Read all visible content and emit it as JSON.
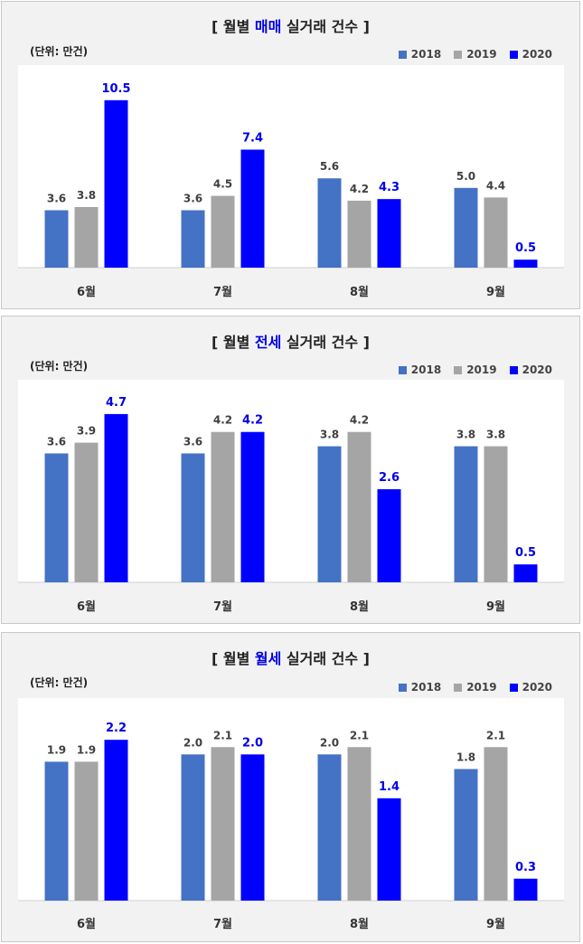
{
  "colors": {
    "s2018": "#4472c4",
    "s2019": "#a5a5a5",
    "s2020": "#0000ff",
    "label2020": "#0000e6"
  },
  "chart_data": [
    {
      "type": "bar",
      "title_prefix": "[ 월별 ",
      "title_highlight": "매매",
      "title_suffix": " 실거래 건수 ]",
      "unit": "(단위: 만건)",
      "categories": [
        "6월",
        "7월",
        "8월",
        "9월"
      ],
      "ylim": [
        0,
        11
      ],
      "series": [
        {
          "name": "2018",
          "values": [
            3.6,
            3.6,
            5.6,
            5.0
          ]
        },
        {
          "name": "2019",
          "values": [
            3.8,
            4.5,
            4.2,
            4.4
          ]
        },
        {
          "name": "2020",
          "values": [
            10.5,
            7.4,
            4.3,
            0.5
          ]
        }
      ]
    },
    {
      "type": "bar",
      "title_prefix": "[ 월별 ",
      "title_highlight": "전세",
      "title_suffix": " 실거래 건수 ]",
      "unit": "(단위: 만건)",
      "categories": [
        "6월",
        "7월",
        "8월",
        "9월"
      ],
      "ylim": [
        0,
        4.9
      ],
      "series": [
        {
          "name": "2018",
          "values": [
            3.6,
            3.6,
            3.8,
            3.8
          ]
        },
        {
          "name": "2019",
          "values": [
            3.9,
            4.2,
            4.2,
            3.8
          ]
        },
        {
          "name": "2020",
          "values": [
            4.7,
            4.2,
            2.6,
            0.5
          ]
        }
      ]
    },
    {
      "type": "bar",
      "title_prefix": "[ 월별 ",
      "title_highlight": "월세",
      "title_suffix": " 실거래 건수 ]",
      "unit": "(단위: 만건)",
      "categories": [
        "6월",
        "7월",
        "8월",
        "9월"
      ],
      "ylim": [
        0,
        2.4
      ],
      "series": [
        {
          "name": "2018",
          "values": [
            1.9,
            2.0,
            2.0,
            1.8
          ]
        },
        {
          "name": "2019",
          "values": [
            1.9,
            2.1,
            2.1,
            2.1
          ]
        },
        {
          "name": "2020",
          "values": [
            2.2,
            2.0,
            1.4,
            0.3
          ]
        }
      ]
    }
  ]
}
